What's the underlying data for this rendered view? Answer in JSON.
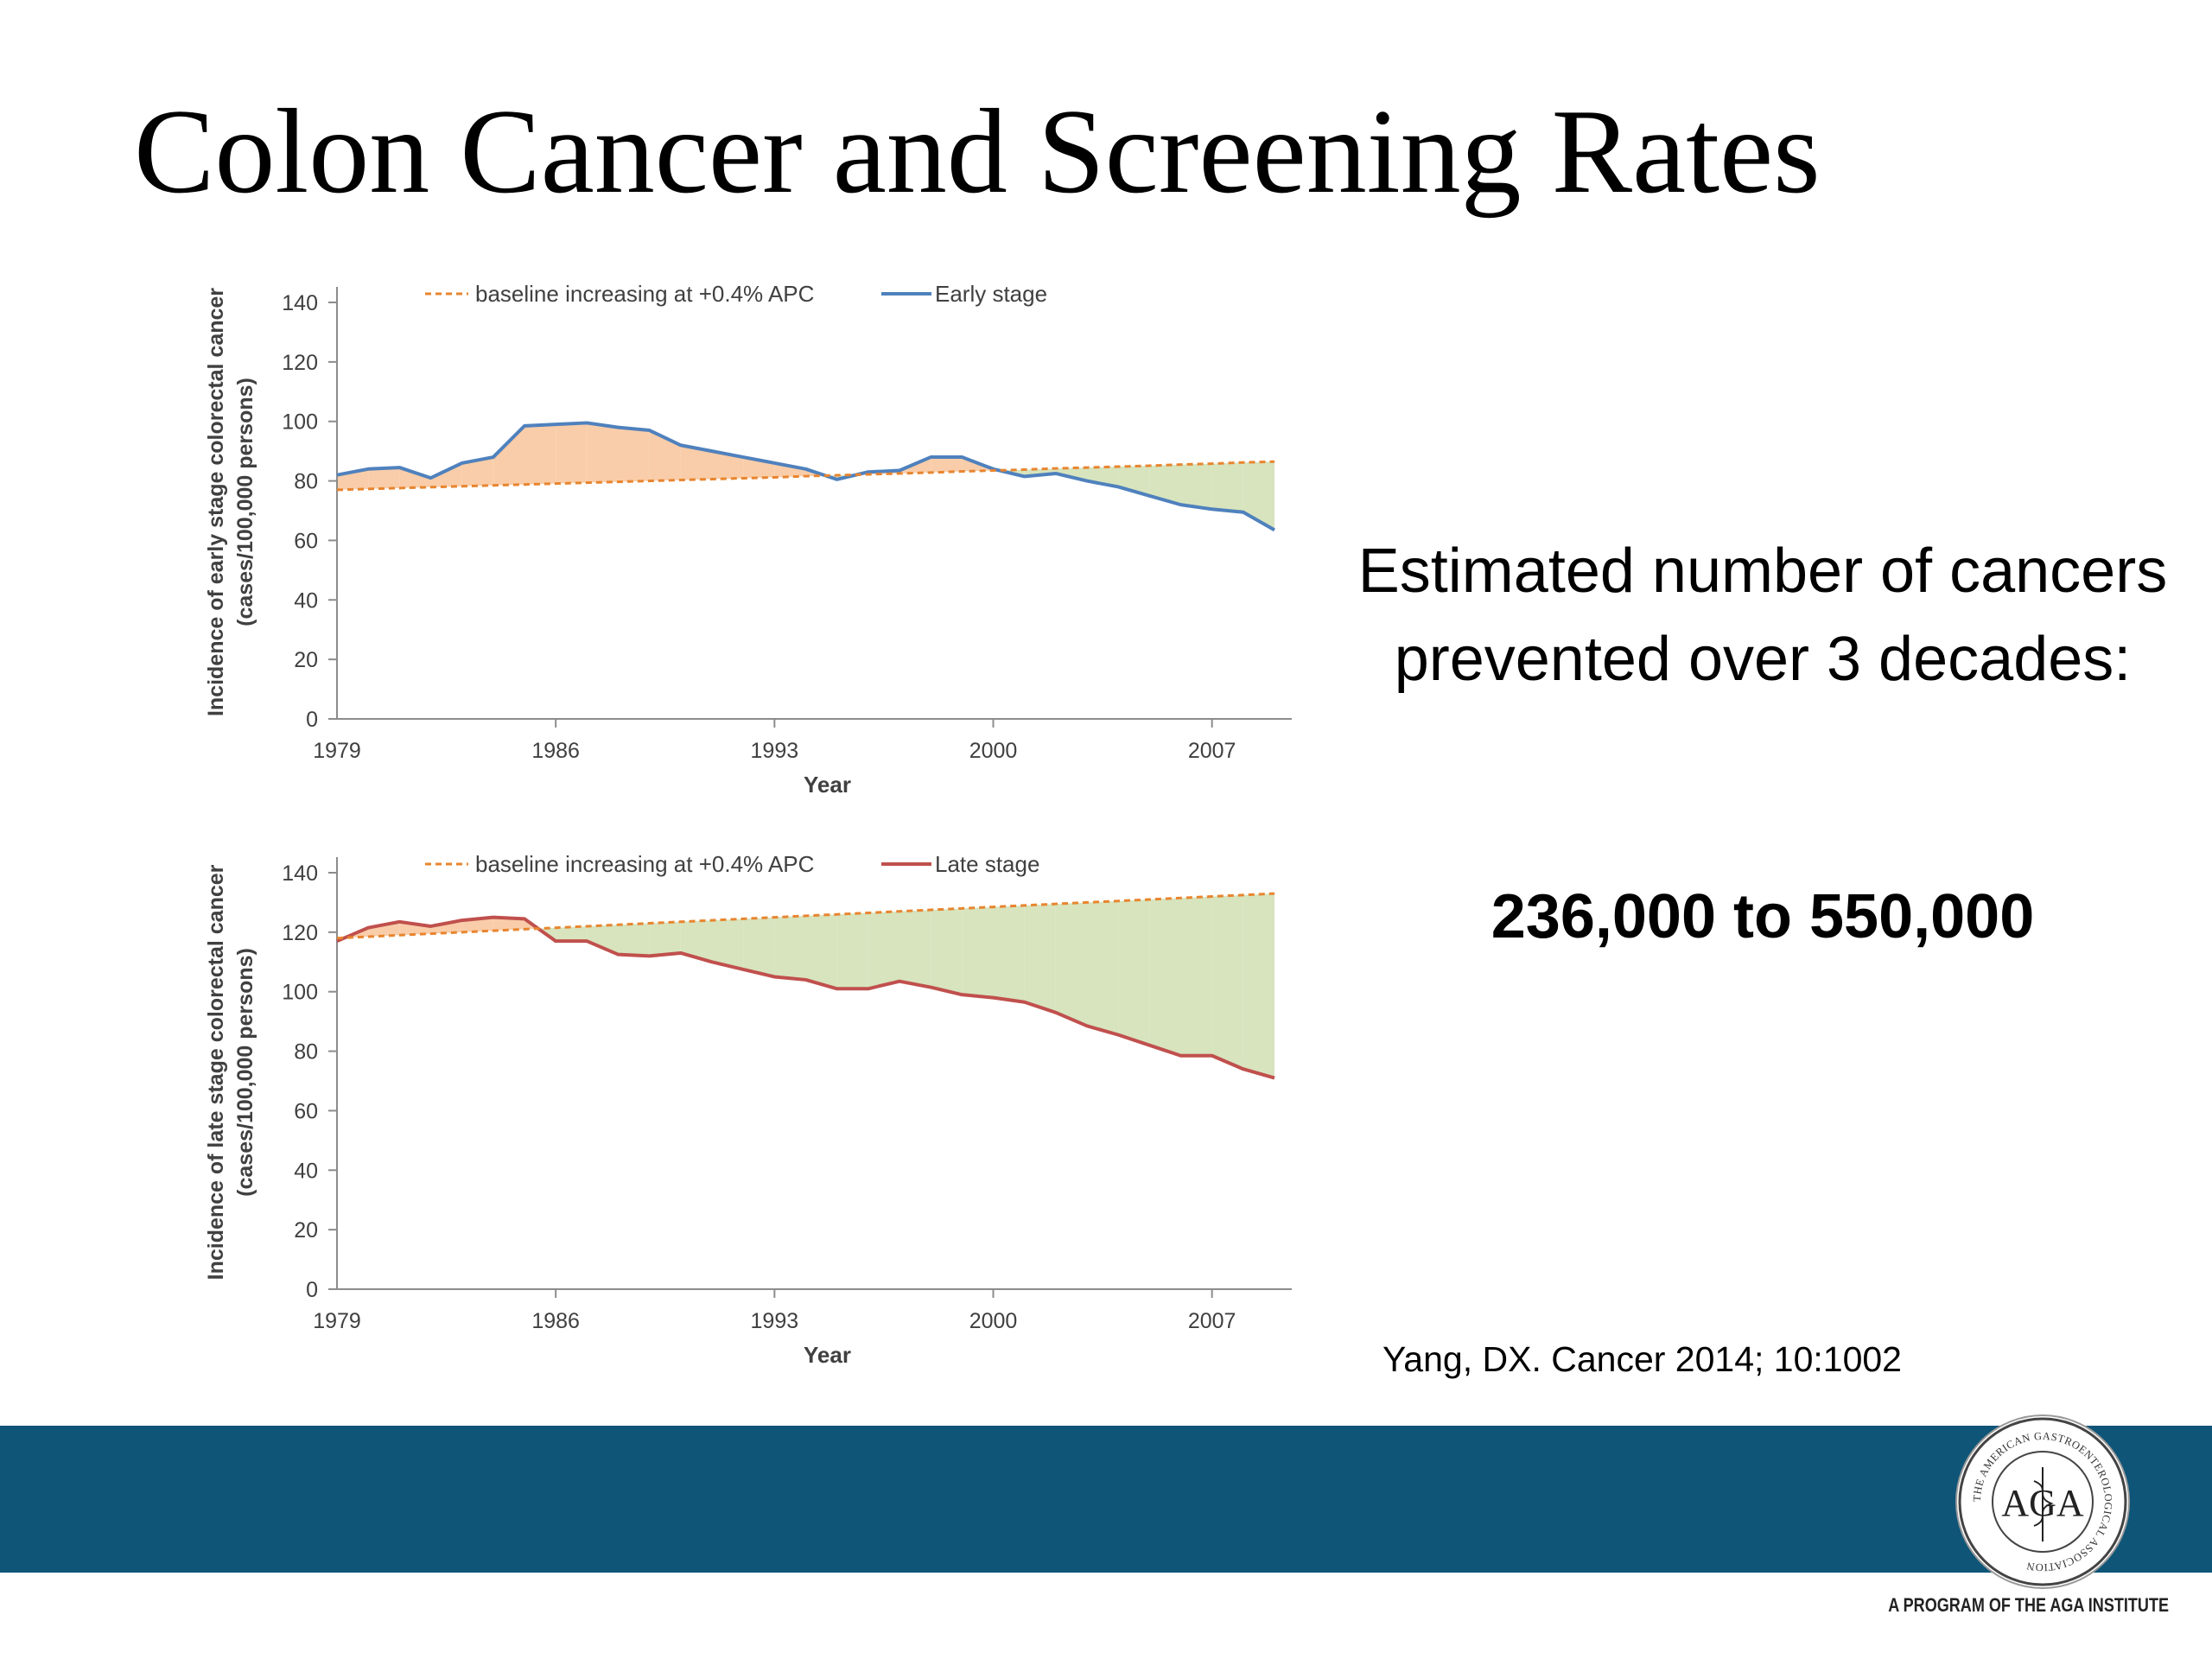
{
  "slide": {
    "title": "Colon Cancer and Screening Rates",
    "side_text": "Estimated number of cancers prevented over 3 decades:",
    "range": "236,000 to 550,000",
    "citation": "Yang, DX. Cancer 2014; 10:1002",
    "band_color": "#0e5578",
    "logo": {
      "icon": "aga-seal",
      "center_text": "AGA",
      "ring_text": "THE AMERICAN GASTROENTEROLOGICAL ASSOCIATION"
    },
    "program_text": "A PROGRAM OF THE AGA INSTITUTE"
  },
  "chart_data": [
    {
      "type": "area",
      "ylabel_line1": "Incidence of early stage colorectal cancer",
      "ylabel_line2": "(cases/100,000 persons)",
      "xlabel": "Year",
      "ylim": [
        0,
        140
      ],
      "yticks": [
        "0",
        "20",
        "40",
        "60",
        "80",
        "100",
        "120",
        "140"
      ],
      "xlim": [
        1979,
        2009
      ],
      "xticks": [
        "1979",
        "1986",
        "1993",
        "2000",
        "2007"
      ],
      "legend_placement": "top",
      "series": [
        {
          "name": "baseline increasing at +0.4% APC",
          "style": "dashed",
          "color": "#e8852f",
          "x": [
            1979,
            1980,
            1981,
            1982,
            1983,
            1984,
            1985,
            1986,
            1987,
            1988,
            1989,
            1990,
            1991,
            1992,
            1993,
            1994,
            1995,
            1996,
            1997,
            1998,
            1999,
            2000,
            2001,
            2002,
            2003,
            2004,
            2005,
            2006,
            2007,
            2008,
            2009
          ],
          "values": [
            77.0,
            77.3,
            77.6,
            77.9,
            78.2,
            78.5,
            78.8,
            79.1,
            79.4,
            79.7,
            80.0,
            80.3,
            80.6,
            80.9,
            81.2,
            81.6,
            81.9,
            82.2,
            82.5,
            82.8,
            83.2,
            83.5,
            83.8,
            84.2,
            84.5,
            84.8,
            85.1,
            85.5,
            85.8,
            86.2,
            86.5
          ]
        },
        {
          "name": "Early stage",
          "style": "solid",
          "color": "#4f81bd",
          "x": [
            1979,
            1980,
            1981,
            1982,
            1983,
            1984,
            1985,
            1986,
            1987,
            1988,
            1989,
            1990,
            1991,
            1992,
            1993,
            1994,
            1995,
            1996,
            1997,
            1998,
            1999,
            2000,
            2001,
            2002,
            2003,
            2004,
            2005,
            2006,
            2007,
            2008,
            2009
          ],
          "values": [
            82,
            84,
            84.5,
            81,
            86,
            88,
            98.5,
            99,
            99.5,
            98,
            97,
            92,
            90,
            88,
            86,
            84,
            80.5,
            83,
            83.5,
            88,
            88,
            84,
            81.5,
            82.5,
            80,
            78,
            75,
            72,
            70.5,
            69.5,
            63.5
          ]
        }
      ],
      "fills": {
        "above": "#f9cda9",
        "below": "#d7e4bd"
      }
    },
    {
      "type": "area",
      "ylabel_line1": "Incidence of late stage colorectal cancer",
      "ylabel_line2": "(cases/100,000 persons)",
      "xlabel": "Year",
      "ylim": [
        0,
        140
      ],
      "yticks": [
        "0",
        "20",
        "40",
        "60",
        "80",
        "100",
        "120",
        "140"
      ],
      "xlim": [
        1979,
        2009
      ],
      "xticks": [
        "1979",
        "1986",
        "1993",
        "2000",
        "2007"
      ],
      "legend_placement": "top",
      "series": [
        {
          "name": "baseline increasing at +0.4% APC",
          "style": "dashed",
          "color": "#e8852f",
          "x": [
            1979,
            1980,
            1981,
            1982,
            1983,
            1984,
            1985,
            1986,
            1987,
            1988,
            1989,
            1990,
            1991,
            1992,
            1993,
            1994,
            1995,
            1996,
            1997,
            1998,
            1999,
            2000,
            2001,
            2002,
            2003,
            2004,
            2005,
            2006,
            2007,
            2008,
            2009
          ],
          "values": [
            118.0,
            118.5,
            119.0,
            119.5,
            120.0,
            120.5,
            121.0,
            121.5,
            122.0,
            122.5,
            123.0,
            123.5,
            124.0,
            124.5,
            125.0,
            125.5,
            126.0,
            126.5,
            127.0,
            127.5,
            128.0,
            128.5,
            129.0,
            129.5,
            130.0,
            130.5,
            131.0,
            131.5,
            132.0,
            132.5,
            133.0
          ]
        },
        {
          "name": "Late stage",
          "style": "solid",
          "color": "#c0504d",
          "x": [
            1979,
            1980,
            1981,
            1982,
            1983,
            1984,
            1985,
            1986,
            1987,
            1988,
            1989,
            1990,
            1991,
            1992,
            1993,
            1994,
            1995,
            1996,
            1997,
            1998,
            1999,
            2000,
            2001,
            2002,
            2003,
            2004,
            2005,
            2006,
            2007,
            2008,
            2009
          ],
          "values": [
            117,
            121.5,
            123.5,
            122,
            124,
            125,
            124.5,
            117,
            117,
            112.5,
            112,
            113,
            110,
            107.5,
            105,
            104,
            101,
            101,
            103.5,
            101.5,
            99,
            98,
            96.5,
            93,
            88.5,
            85.5,
            82,
            78.5,
            78.5,
            74,
            71
          ]
        }
      ],
      "fills": {
        "above": "#f9cda9",
        "below": "#d7e4bd"
      }
    }
  ]
}
